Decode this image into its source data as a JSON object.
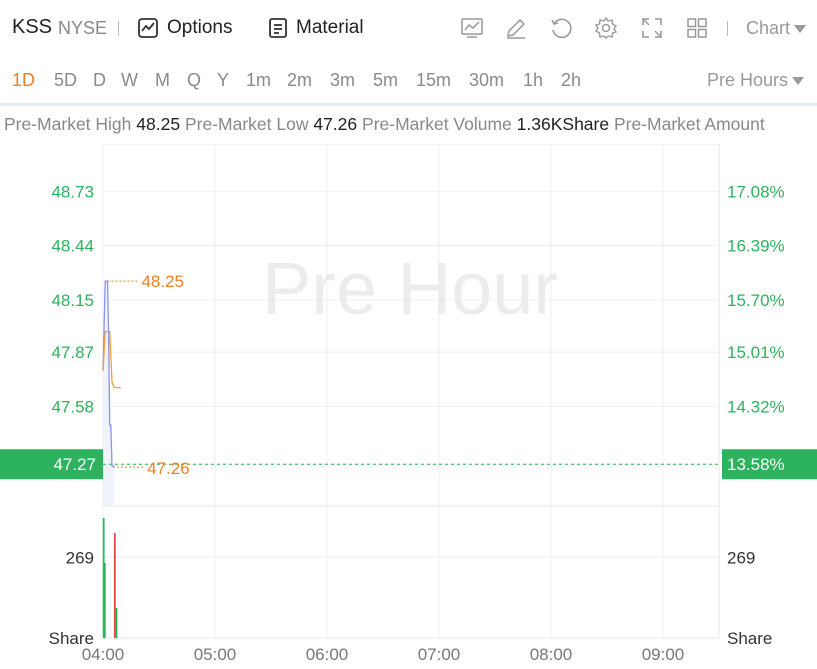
{
  "header": {
    "ticker": "KSS",
    "exchange": "NYSE",
    "options_label": "Options",
    "material_label": "Material",
    "chart_select_label": "Chart",
    "icons": [
      "indicator-icon",
      "draw-icon",
      "refresh-icon",
      "settings-icon",
      "fullscreen-icon",
      "layout-icon"
    ]
  },
  "periods": {
    "items": [
      "1D",
      "5D",
      "D",
      "W",
      "M",
      "Q",
      "Y",
      "1m",
      "2m",
      "3m",
      "5m",
      "15m",
      "30m",
      "1h",
      "2h"
    ],
    "active": "1D",
    "session_select": "Pre Hours"
  },
  "stats": {
    "high_label": "Pre-Market High",
    "high_value": "48.25",
    "low_label": "Pre-Market Low",
    "low_value": "47.26",
    "volume_label": "Pre-Market Volume",
    "volume_value": "1.36KShare",
    "amount_label": "Pre-Market Amount"
  },
  "colors": {
    "up": "#2db35d",
    "down": "#e84545",
    "accent": "#f0801f",
    "price_line": "#8c93e8",
    "avg_line": "#f0a040"
  },
  "chart_data": {
    "type": "line",
    "watermark": "Pre Hour",
    "x_ticks": [
      "04:00",
      "05:00",
      "06:00",
      "07:00",
      "08:00",
      "09:00"
    ],
    "x_range_hours": [
      4.0,
      9.5
    ],
    "price_ticks": [
      48.73,
      48.44,
      48.15,
      47.87,
      47.58,
      47.27
    ],
    "price_tick_labels": [
      "48.73",
      "48.44",
      "48.15",
      "47.87",
      "47.58",
      "47.27"
    ],
    "percent_tick_labels": [
      "17.08%",
      "16.39%",
      "15.70%",
      "15.01%",
      "14.32%",
      "13.58%"
    ],
    "y_range": [
      47.1,
      48.93
    ],
    "current_price": "47.27",
    "current_percent": "13.58%",
    "high_label": "48.25",
    "low_label": "47.26",
    "high": 48.25,
    "low": 47.26,
    "price_series": {
      "x": [
        4.0,
        4.02,
        4.03,
        4.04,
        4.05,
        4.06,
        4.07,
        4.08,
        4.09,
        4.1
      ],
      "y": [
        47.77,
        48.25,
        48.25,
        48.25,
        47.98,
        47.48,
        47.48,
        47.26,
        47.26,
        47.26
      ]
    },
    "avg_series": {
      "x": [
        4.0,
        4.02,
        4.06,
        4.08,
        4.1,
        4.16
      ],
      "y": [
        47.77,
        47.98,
        47.98,
        47.71,
        47.68,
        47.68
      ]
    },
    "volume": {
      "tick_label": "269",
      "tick_value": 269,
      "unit": "Share",
      "y_max": 400,
      "bars": [
        {
          "x": 4.005,
          "v": 400,
          "dir": "up"
        },
        {
          "x": 4.015,
          "v": 250,
          "dir": "up"
        },
        {
          "x": 4.105,
          "v": 350,
          "dir": "down"
        },
        {
          "x": 4.12,
          "v": 100,
          "dir": "up"
        }
      ]
    }
  }
}
